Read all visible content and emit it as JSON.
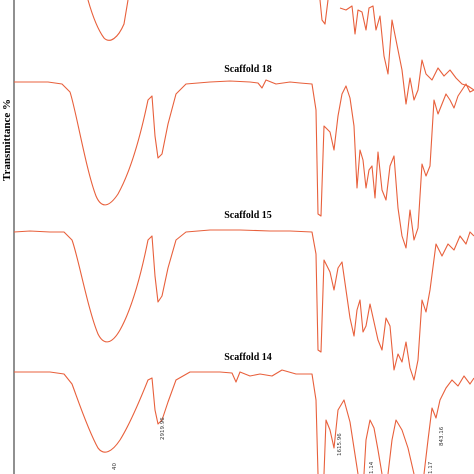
{
  "chart_data": {
    "type": "line",
    "ylabel": "Transmittance %",
    "xlabel": "",
    "line_color": "#e8603c",
    "series": [
      {
        "name": "",
        "values": []
      },
      {
        "name": "Scaffold 18",
        "values": []
      },
      {
        "name": "Scaffold 15",
        "values": []
      },
      {
        "name": "Scaffold 14",
        "values": []
      }
    ],
    "annotations": [
      "40",
      "2919.96",
      "1615.96",
      "1.14",
      "1.17",
      "843.16"
    ]
  }
}
